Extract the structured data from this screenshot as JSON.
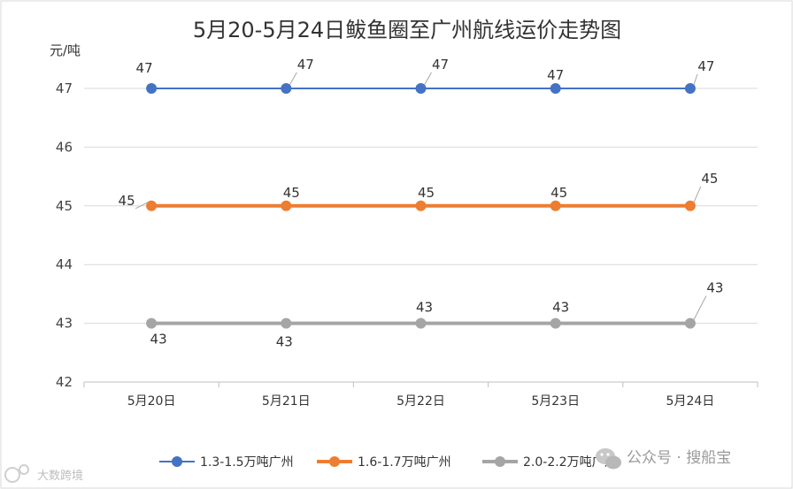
{
  "chart_data": {
    "type": "line",
    "title": "5月20-5月24日鲅鱼圈至广州航线运价走势图",
    "ylabel": "元/吨",
    "xlabel": "",
    "categories": [
      "5月20日",
      "5月21日",
      "5月22日",
      "5月23日",
      "5月24日"
    ],
    "ylim": [
      42,
      47
    ],
    "yticks": [
      42,
      43,
      44,
      45,
      46,
      47
    ],
    "grid": true,
    "legend_position": "bottom",
    "series": [
      {
        "name": "1.3-1.5万吨广州",
        "values": [
          47,
          47,
          47,
          47,
          47
        ],
        "color": "#4472c4"
      },
      {
        "name": "1.6-1.7万吨广州",
        "values": [
          45,
          45,
          45,
          45,
          45
        ],
        "color": "#ed7d31"
      },
      {
        "name": "2.0-2.2万吨广州",
        "values": [
          43,
          43,
          43,
          43,
          43
        ],
        "color": "#a5a5a5"
      }
    ]
  },
  "watermarks": {
    "wechat": "公众号 · 搜船宝",
    "corner": "大数跨境"
  }
}
